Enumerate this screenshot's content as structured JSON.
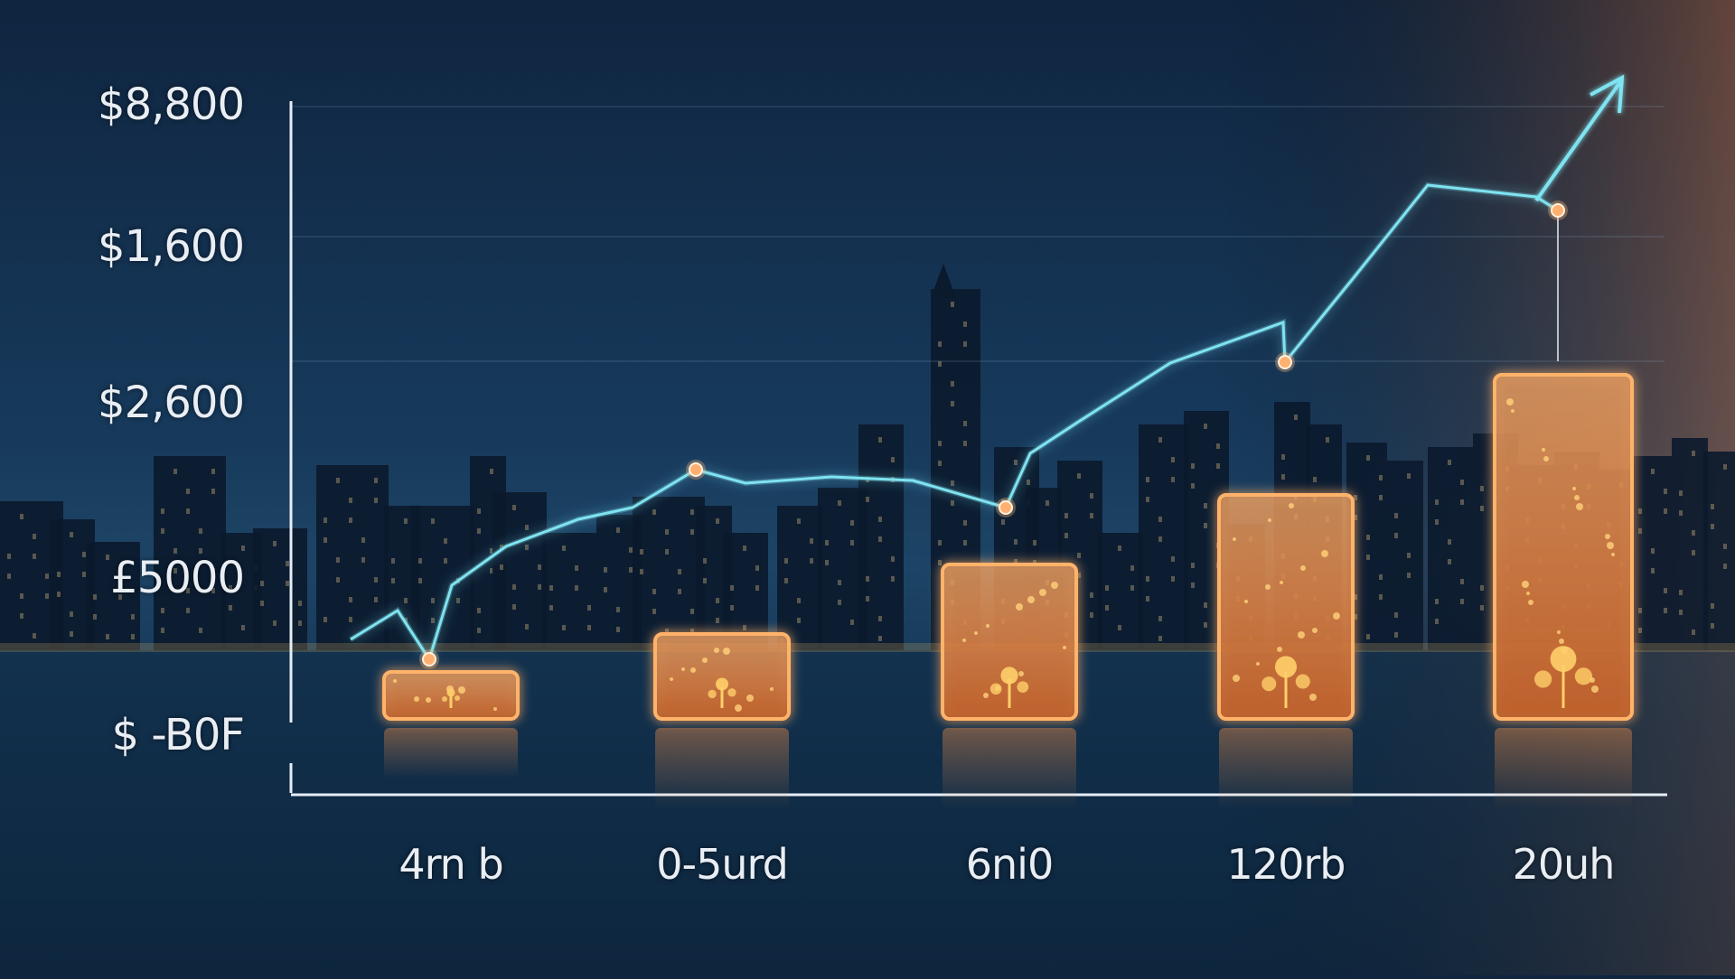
{
  "chart_data": {
    "type": "bar",
    "title": "",
    "xlabel": "",
    "ylabel": "",
    "categories": [
      "4rn b",
      "0-5urd",
      "6ni0",
      "120rb",
      "20uh"
    ],
    "y_tick_labels": [
      "$8,800",
      "$1,600",
      "$2,600",
      "£5000",
      "$ -B0F"
    ],
    "ylim": [
      0,
      100
    ],
    "grid": true,
    "series": [
      {
        "type": "bar",
        "values": [
          8,
          14,
          25,
          36,
          55
        ]
      },
      {
        "type": "line",
        "values": [
          10,
          40,
          34,
          57,
          81
        ]
      }
    ],
    "colors": {
      "bar_fill": "#d97a3a",
      "bar_stroke": "#ffb36b",
      "line": "#7fe3f0",
      "marker": "#ffb070",
      "axis": "#e6edf5",
      "text": "#e9eef4"
    }
  }
}
